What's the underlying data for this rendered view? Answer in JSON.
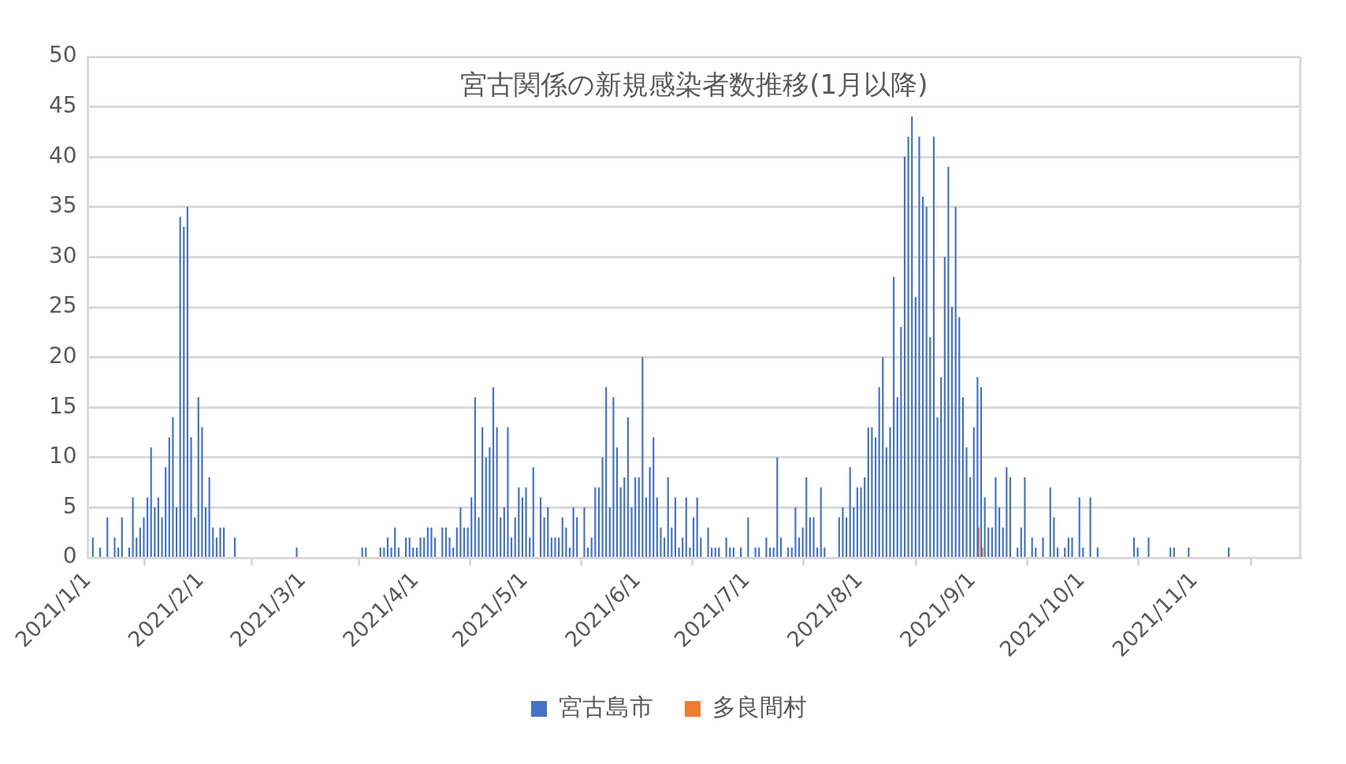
{
  "chart_data": {
    "type": "bar",
    "title": "宮古関係の新規感染者数推移(1月以降)",
    "xlim": [
      "2021-01-01",
      "2021-11-30"
    ],
    "xticks": [
      {
        "value": "2021-01-01",
        "label": "2021/1/1"
      },
      {
        "value": "2021-02-01",
        "label": "2021/2/1"
      },
      {
        "value": "2021-03-01",
        "label": "2021/3/1"
      },
      {
        "value": "2021-04-01",
        "label": "2021/4/1"
      },
      {
        "value": "2021-05-01",
        "label": "2021/5/1"
      },
      {
        "value": "2021-06-01",
        "label": "2021/6/1"
      },
      {
        "value": "2021-07-01",
        "label": "2021/7/1"
      },
      {
        "value": "2021-08-01",
        "label": "2021/8/1"
      },
      {
        "value": "2021-09-01",
        "label": "2021/9/1"
      },
      {
        "value": "2021-10-01",
        "label": "2021/10/1"
      },
      {
        "value": "2021-11-01",
        "label": "2021/11/1"
      }
    ],
    "ylim": [
      0,
      50
    ],
    "yticks": [
      0,
      5,
      10,
      15,
      20,
      25,
      30,
      35,
      40,
      45,
      50
    ],
    "grid": "y",
    "legend": "bottom",
    "series": [
      {
        "name": "宮古島市",
        "color": "#4472c4",
        "x": [
          "2021-01-02",
          "2021-01-04",
          "2021-01-06",
          "2021-01-08",
          "2021-01-09",
          "2021-01-10",
          "2021-01-12",
          "2021-01-13",
          "2021-01-14",
          "2021-01-15",
          "2021-01-16",
          "2021-01-17",
          "2021-01-18",
          "2021-01-19",
          "2021-01-20",
          "2021-01-21",
          "2021-01-22",
          "2021-01-23",
          "2021-01-24",
          "2021-01-25",
          "2021-01-26",
          "2021-01-27",
          "2021-01-28",
          "2021-01-29",
          "2021-01-30",
          "2021-01-31",
          "2021-02-01",
          "2021-02-02",
          "2021-02-03",
          "2021-02-04",
          "2021-02-05",
          "2021-02-06",
          "2021-02-07",
          "2021-02-10",
          "2021-02-27",
          "2021-03-17",
          "2021-03-18",
          "2021-03-22",
          "2021-03-23",
          "2021-03-24",
          "2021-03-25",
          "2021-03-26",
          "2021-03-27",
          "2021-03-29",
          "2021-03-30",
          "2021-03-31",
          "2021-04-01",
          "2021-04-02",
          "2021-04-03",
          "2021-04-04",
          "2021-04-05",
          "2021-04-06",
          "2021-04-08",
          "2021-04-09",
          "2021-04-10",
          "2021-04-11",
          "2021-04-12",
          "2021-04-13",
          "2021-04-14",
          "2021-04-15",
          "2021-04-16",
          "2021-04-17",
          "2021-04-18",
          "2021-04-19",
          "2021-04-20",
          "2021-04-21",
          "2021-04-22",
          "2021-04-23",
          "2021-04-24",
          "2021-04-25",
          "2021-04-26",
          "2021-04-27",
          "2021-04-28",
          "2021-04-29",
          "2021-04-30",
          "2021-05-01",
          "2021-05-02",
          "2021-05-03",
          "2021-05-05",
          "2021-05-06",
          "2021-05-07",
          "2021-05-08",
          "2021-05-09",
          "2021-05-10",
          "2021-05-11",
          "2021-05-12",
          "2021-05-13",
          "2021-05-14",
          "2021-05-15",
          "2021-05-17",
          "2021-05-18",
          "2021-05-19",
          "2021-05-20",
          "2021-05-21",
          "2021-05-22",
          "2021-05-23",
          "2021-05-24",
          "2021-05-25",
          "2021-05-26",
          "2021-05-27",
          "2021-05-28",
          "2021-05-29",
          "2021-05-30",
          "2021-05-31",
          "2021-06-01",
          "2021-06-02",
          "2021-06-03",
          "2021-06-04",
          "2021-06-05",
          "2021-06-06",
          "2021-06-07",
          "2021-06-08",
          "2021-06-09",
          "2021-06-10",
          "2021-06-11",
          "2021-06-12",
          "2021-06-13",
          "2021-06-14",
          "2021-06-15",
          "2021-06-16",
          "2021-06-17",
          "2021-06-18",
          "2021-06-20",
          "2021-06-21",
          "2021-06-22",
          "2021-06-23",
          "2021-06-25",
          "2021-06-26",
          "2021-06-27",
          "2021-06-29",
          "2021-07-01",
          "2021-07-03",
          "2021-07-04",
          "2021-07-06",
          "2021-07-07",
          "2021-07-08",
          "2021-07-09",
          "2021-07-10",
          "2021-07-12",
          "2021-07-13",
          "2021-07-14",
          "2021-07-15",
          "2021-07-16",
          "2021-07-17",
          "2021-07-18",
          "2021-07-19",
          "2021-07-20",
          "2021-07-21",
          "2021-07-22",
          "2021-07-26",
          "2021-07-27",
          "2021-07-28",
          "2021-07-29",
          "2021-07-30",
          "2021-07-31",
          "2021-08-01",
          "2021-08-02",
          "2021-08-03",
          "2021-08-04",
          "2021-08-05",
          "2021-08-06",
          "2021-08-07",
          "2021-08-08",
          "2021-08-09",
          "2021-08-10",
          "2021-08-11",
          "2021-08-12",
          "2021-08-13",
          "2021-08-14",
          "2021-08-15",
          "2021-08-16",
          "2021-08-17",
          "2021-08-18",
          "2021-08-19",
          "2021-08-20",
          "2021-08-21",
          "2021-08-22",
          "2021-08-23",
          "2021-08-24",
          "2021-08-25",
          "2021-08-26",
          "2021-08-27",
          "2021-08-28",
          "2021-08-29",
          "2021-08-30",
          "2021-08-31",
          "2021-09-01",
          "2021-09-02",
          "2021-09-03",
          "2021-09-04",
          "2021-09-05",
          "2021-09-06",
          "2021-09-07",
          "2021-09-08",
          "2021-09-09",
          "2021-09-10",
          "2021-09-11",
          "2021-09-13",
          "2021-09-14",
          "2021-09-15",
          "2021-09-17",
          "2021-09-18",
          "2021-09-20",
          "2021-09-22",
          "2021-09-23",
          "2021-09-24",
          "2021-09-26",
          "2021-09-27",
          "2021-09-28",
          "2021-09-30",
          "2021-10-01",
          "2021-10-03",
          "2021-10-05",
          "2021-10-15",
          "2021-10-16",
          "2021-10-19",
          "2021-10-25",
          "2021-10-26",
          "2021-10-30",
          "2021-11-10"
        ],
        "values": [
          2,
          1,
          4,
          2,
          1,
          4,
          1,
          6,
          2,
          3,
          4,
          6,
          11,
          5,
          6,
          4,
          9,
          12,
          14,
          5,
          34,
          33,
          35,
          12,
          4,
          16,
          13,
          5,
          8,
          3,
          2,
          3,
          3,
          2,
          1,
          1,
          1,
          1,
          1,
          2,
          1,
          3,
          1,
          2,
          2,
          1,
          1,
          2,
          2,
          3,
          3,
          2,
          3,
          3,
          2,
          1,
          3,
          5,
          3,
          3,
          6,
          16,
          4,
          13,
          10,
          11,
          17,
          13,
          4,
          5,
          13,
          2,
          4,
          7,
          6,
          7,
          2,
          9,
          6,
          4,
          5,
          2,
          2,
          2,
          4,
          3,
          1,
          5,
          4,
          5,
          1,
          2,
          7,
          7,
          10,
          17,
          5,
          16,
          11,
          7,
          8,
          14,
          5,
          8,
          8,
          20,
          6,
          9,
          12,
          6,
          3,
          2,
          8,
          3,
          6,
          1,
          2,
          6,
          1,
          4,
          6,
          2,
          3,
          1,
          1,
          1,
          2,
          1,
          1,
          1,
          4,
          1,
          1,
          2,
          1,
          1,
          10,
          2,
          1,
          1,
          5,
          2,
          3,
          8,
          4,
          4,
          1,
          7,
          1,
          4,
          5,
          4,
          9,
          5,
          7,
          7,
          8,
          13,
          13,
          12,
          17,
          20,
          11,
          13,
          28,
          16,
          23,
          40,
          42,
          44,
          26,
          42,
          36,
          35,
          22,
          42,
          14,
          18,
          30,
          39,
          25,
          35,
          24,
          16,
          11,
          8,
          13,
          18,
          17,
          6,
          3,
          3,
          8,
          5,
          3,
          9,
          8,
          1,
          3,
          8,
          2,
          1,
          2,
          7,
          4,
          1,
          1,
          2,
          2,
          6,
          1,
          6,
          1,
          2,
          1,
          2,
          1,
          1,
          1,
          1
        ]
      },
      {
        "name": "多良間村",
        "color": "#ed7d31",
        "x": [
          "2021-09-02",
          "2021-09-03"
        ],
        "values": [
          3,
          1
        ]
      }
    ]
  }
}
